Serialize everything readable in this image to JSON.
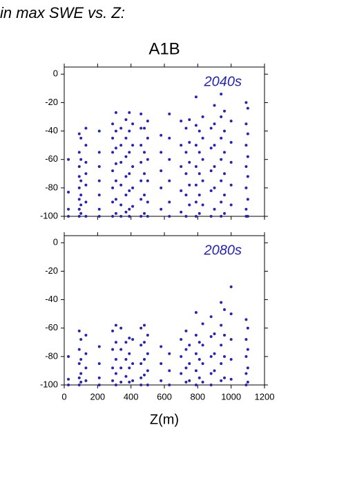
{
  "header": {
    "title": "in max SWE vs. Z:",
    "subtitle": "A1B"
  },
  "chart_data": [
    {
      "type": "scatter",
      "annotation": "2040s",
      "color": "#2424b8",
      "xlim": [
        0,
        1200
      ],
      "xticks": [
        0,
        200,
        400,
        600,
        800,
        1000,
        1200
      ],
      "ylim": [
        -100,
        5
      ],
      "yticks": [
        0,
        -20,
        -40,
        -60,
        -80,
        -100
      ],
      "x": [
        25,
        25,
        25,
        25,
        90,
        90,
        90,
        90,
        90,
        90,
        90,
        90,
        100,
        100,
        100,
        100,
        100,
        100,
        130,
        130,
        130,
        130,
        130,
        130,
        130,
        210,
        210,
        210,
        210,
        210,
        210,
        210,
        290,
        290,
        290,
        290,
        290,
        290,
        290,
        310,
        310,
        310,
        310,
        310,
        310,
        310,
        340,
        340,
        340,
        340,
        340,
        340,
        370,
        370,
        370,
        370,
        370,
        370,
        390,
        390,
        390,
        390,
        390,
        390,
        390,
        410,
        410,
        410,
        410,
        410,
        460,
        460,
        460,
        460,
        460,
        460,
        460,
        480,
        480,
        480,
        480,
        480,
        500,
        500,
        500,
        500,
        500,
        500,
        580,
        580,
        580,
        580,
        580,
        630,
        630,
        630,
        630,
        630,
        630,
        700,
        700,
        700,
        700,
        700,
        730,
        730,
        730,
        730,
        730,
        750,
        750,
        750,
        750,
        750,
        790,
        790,
        790,
        790,
        790,
        790,
        790,
        810,
        810,
        810,
        810,
        810,
        830,
        830,
        830,
        830,
        830,
        880,
        880,
        880,
        880,
        880,
        900,
        900,
        900,
        900,
        900,
        900,
        940,
        940,
        940,
        940,
        940,
        940,
        940,
        960,
        960,
        960,
        960,
        960,
        960,
        1000,
        1000,
        1000,
        1000,
        1000,
        1090,
        1090,
        1090,
        1090,
        1090,
        1090,
        1090,
        1100,
        1100,
        1100,
        1100,
        1100,
        1100
      ],
      "values": [
        -60,
        -83,
        -95,
        -100,
        -42,
        -55,
        -65,
        -72,
        -80,
        -88,
        -95,
        -100,
        -45,
        -60,
        -75,
        -85,
        -92,
        -98,
        -38,
        -50,
        -62,
        -70,
        -78,
        -90,
        -100,
        -40,
        -55,
        -65,
        -75,
        -85,
        -95,
        -100,
        -35,
        -45,
        -55,
        -68,
        -80,
        -90,
        -100,
        -27,
        -40,
        -52,
        -63,
        -75,
        -88,
        -98,
        -38,
        -50,
        -62,
        -78,
        -92,
        -100,
        -32,
        -45,
        -58,
        -72,
        -85,
        -97,
        -27,
        -40,
        -55,
        -70,
        -82,
        -95,
        -100,
        -35,
        -50,
        -65,
        -80,
        -93,
        -28,
        -38,
        -50,
        -62,
        -75,
        -88,
        -100,
        -38,
        -55,
        -70,
        -85,
        -98,
        -33,
        -45,
        -60,
        -75,
        -90,
        -100,
        -43,
        -55,
        -68,
        -80,
        -95,
        -28,
        -45,
        -60,
        -75,
        -90,
        -100,
        -33,
        -50,
        -65,
        -82,
        -97,
        -38,
        -55,
        -70,
        -85,
        -100,
        -32,
        -48,
        -62,
        -78,
        -92,
        -16,
        -36,
        -50,
        -65,
        -78,
        -90,
        -100,
        -40,
        -55,
        -70,
        -85,
        -98,
        -30,
        -45,
        -60,
        -75,
        -92,
        -38,
        -52,
        -68,
        -82,
        -100,
        -22,
        -35,
        -50,
        -65,
        -80,
        -95,
        -14,
        -30,
        -45,
        -60,
        -75,
        -90,
        -100,
        -26,
        -40,
        -55,
        -70,
        -85,
        -98,
        -33,
        -48,
        -62,
        -78,
        -92,
        -20,
        -35,
        -50,
        -65,
        -80,
        -95,
        -100,
        -24,
        -42,
        -58,
        -72,
        -88,
        -100
      ]
    },
    {
      "type": "scatter",
      "annotation": "2080s",
      "color": "#2424b8",
      "xlabel": "Z(m)",
      "xlim": [
        0,
        1200
      ],
      "xticks": [
        0,
        200,
        400,
        600,
        800,
        1000,
        1200
      ],
      "ylim": [
        -100,
        5
      ],
      "yticks": [
        0,
        -20,
        -40,
        -60,
        -80,
        -100
      ],
      "x": [
        25,
        25,
        25,
        90,
        90,
        90,
        90,
        90,
        100,
        100,
        100,
        100,
        130,
        130,
        130,
        130,
        210,
        210,
        210,
        210,
        290,
        290,
        290,
        290,
        310,
        310,
        310,
        310,
        310,
        340,
        340,
        340,
        340,
        370,
        370,
        370,
        390,
        390,
        390,
        390,
        410,
        410,
        410,
        460,
        460,
        460,
        460,
        460,
        480,
        480,
        480,
        480,
        500,
        500,
        500,
        500,
        580,
        580,
        580,
        630,
        630,
        630,
        700,
        700,
        700,
        730,
        730,
        730,
        730,
        750,
        750,
        750,
        790,
        790,
        790,
        790,
        790,
        810,
        810,
        810,
        830,
        830,
        830,
        830,
        880,
        880,
        880,
        880,
        880,
        900,
        900,
        900,
        940,
        940,
        940,
        940,
        940,
        960,
        960,
        960,
        960,
        1000,
        1000,
        1000,
        1000,
        1000,
        1090,
        1090,
        1090,
        1090,
        1090,
        1100,
        1100,
        1100,
        1100
      ],
      "values": [
        -80,
        -96,
        -100,
        -62,
        -75,
        -85,
        -95,
        -100,
        -68,
        -82,
        -92,
        -98,
        -65,
        -78,
        -88,
        -97,
        -73,
        -85,
        -95,
        -100,
        -62,
        -75,
        -88,
        -97,
        -58,
        -70,
        -82,
        -92,
        -100,
        -60,
        -75,
        -88,
        -98,
        -70,
        -82,
        -94,
        -67,
        -78,
        -88,
        -98,
        -68,
        -85,
        -97,
        -60,
        -72,
        -85,
        -95,
        -100,
        -58,
        -70,
        -82,
        -93,
        -65,
        -78,
        -90,
        -100,
        -73,
        -85,
        -97,
        -78,
        -90,
        -100,
        -68,
        -80,
        -92,
        -62,
        -75,
        -88,
        -98,
        -72,
        -85,
        -97,
        -49,
        -65,
        -78,
        -90,
        -100,
        -70,
        -82,
        -95,
        -57,
        -72,
        -85,
        -98,
        -52,
        -66,
        -80,
        -92,
        -100,
        -64,
        -78,
        -90,
        -42,
        -58,
        -72,
        -85,
        -97,
        -47,
        -65,
        -80,
        -95,
        -31,
        -50,
        -68,
        -82,
        -96,
        -54,
        -68,
        -80,
        -92,
        -100,
        -60,
        -75,
        -88,
        -98
      ]
    }
  ]
}
